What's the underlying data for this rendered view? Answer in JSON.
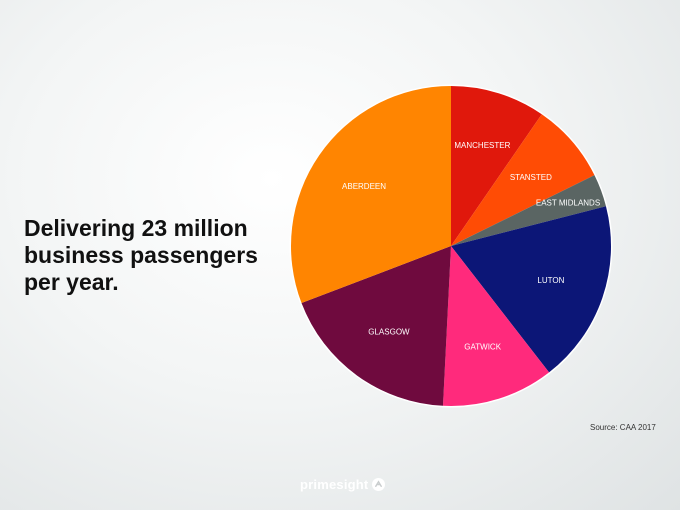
{
  "headline": {
    "lines": [
      "Delivering 23 million",
      "business passengers",
      "per year."
    ]
  },
  "source": "Source: CAA 2017",
  "brand": {
    "name": "primesight",
    "icon": "primesight-logo-icon"
  },
  "chart_data": {
    "type": "pie",
    "title": "",
    "start_angle_deg": 0,
    "direction": "clockwise",
    "legend": "none",
    "slices": [
      {
        "label": "MANCHESTER",
        "value": 9.6,
        "color": "#e0180c"
      },
      {
        "label": "STANSTED",
        "value": 8.1,
        "color": "#ff4c05"
      },
      {
        "label": "EAST MIDLANDS",
        "value": 3.3,
        "color": "#5a6563"
      },
      {
        "label": "LUTON",
        "value": 18.5,
        "color": "#0c1677"
      },
      {
        "label": "GATWICK",
        "value": 11.3,
        "color": "#ff2a7c"
      },
      {
        "label": "GLASGOW",
        "value": 18.4,
        "color": "#6f0a3e"
      },
      {
        "label": "ABERDEEN",
        "value": 30.8,
        "color": "#ff8501"
      }
    ],
    "border_color": "#ffffff"
  }
}
